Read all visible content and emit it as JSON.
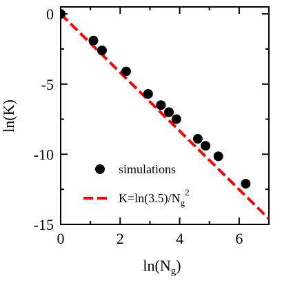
{
  "chart_data": {
    "type": "scatter",
    "xlabel": "ln(N",
    "xlabel_sub": "g",
    "xlabel_close": ")",
    "ylabel": "ln(K)",
    "xlim": [
      0,
      7
    ],
    "ylim": [
      -15,
      0.5
    ],
    "xticks": [
      0,
      2,
      4,
      6
    ],
    "xtick_labels": [
      "0",
      "2",
      "4",
      "6"
    ],
    "yticks": [
      0,
      -5,
      -10,
      -15
    ],
    "ytick_labels": [
      "0",
      "-5",
      "-10",
      "-15"
    ],
    "x_minor_step": 1,
    "y_minor_step": 2.5,
    "grid": false,
    "legend_position": "bottom-left",
    "series": [
      {
        "name": "simulations",
        "kind": "points",
        "color": "#000000",
        "points": [
          {
            "x": 0.0,
            "y": 0.0
          },
          {
            "x": 1.1,
            "y": -1.9
          },
          {
            "x": 1.39,
            "y": -2.6
          },
          {
            "x": 2.2,
            "y": -4.1
          },
          {
            "x": 2.94,
            "y": -5.7
          },
          {
            "x": 3.37,
            "y": -6.5
          },
          {
            "x": 3.64,
            "y": -7.0
          },
          {
            "x": 3.89,
            "y": -7.5
          },
          {
            "x": 4.61,
            "y": -8.9
          },
          {
            "x": 4.87,
            "y": -9.4
          },
          {
            "x": 5.3,
            "y": -10.15
          },
          {
            "x": 6.22,
            "y": -12.1
          }
        ]
      },
      {
        "name": "K=ln(3.5)/N",
        "name_sub": "g",
        "name_sup": "2",
        "kind": "line",
        "color": "#ff0000",
        "line": [
          {
            "x": 0.0,
            "y": 0.0
          },
          {
            "x": 7.0,
            "y": -14.6
          }
        ]
      }
    ]
  }
}
